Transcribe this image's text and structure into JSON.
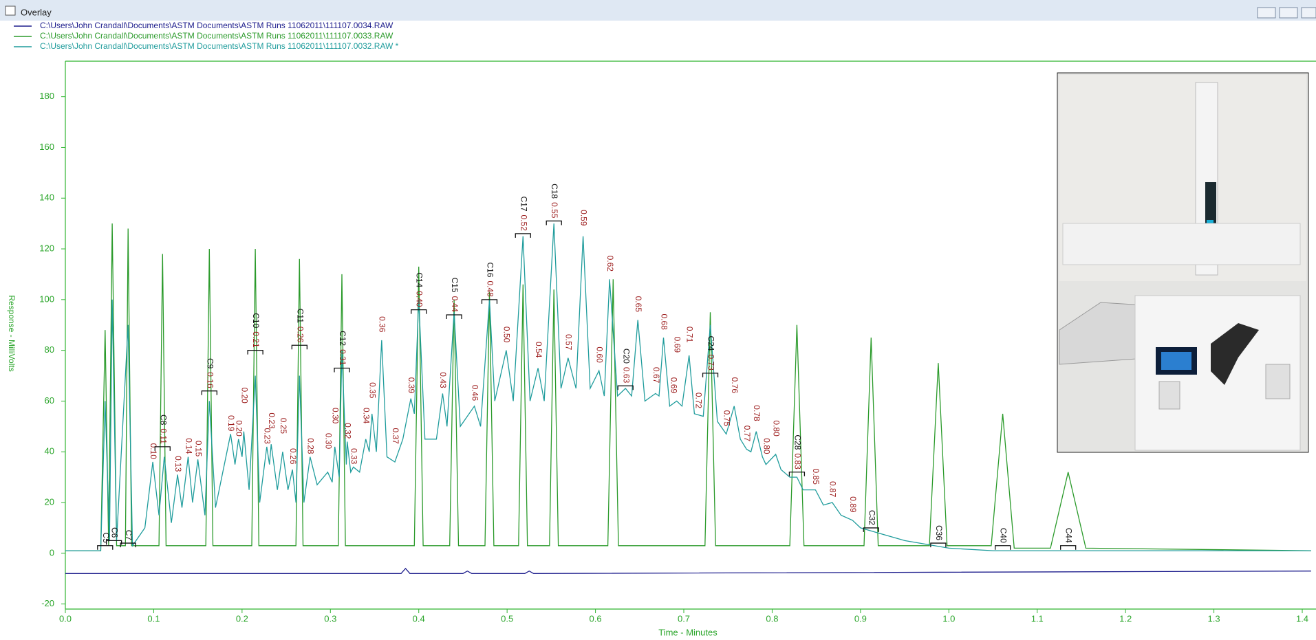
{
  "window": {
    "title": "Overlay"
  },
  "chart_data": {
    "type": "line",
    "y_label": "Response - MilliVolts",
    "x_label": "Time - Minutes",
    "xlim": [
      0,
      1.415
    ],
    "ylim": [
      -22,
      194
    ],
    "xticks": [
      {
        "value": 0,
        "label": "0.0"
      },
      {
        "value": 0.1,
        "label": "0.1"
      },
      {
        "value": 0.2,
        "label": "0.2"
      },
      {
        "value": 0.3,
        "label": "0.3"
      },
      {
        "value": 0.4,
        "label": "0.4"
      },
      {
        "value": 0.5,
        "label": "0.5"
      },
      {
        "value": 0.6,
        "label": "0.6"
      },
      {
        "value": 0.7,
        "label": "0.7"
      },
      {
        "value": 0.8,
        "label": "0.8"
      },
      {
        "value": 0.9,
        "label": "0.9"
      },
      {
        "value": 1,
        "label": "1.0"
      },
      {
        "value": 1.1,
        "label": "1.1"
      },
      {
        "value": 1.2,
        "label": "1.2"
      },
      {
        "value": 1.3,
        "label": "1.3"
      },
      {
        "value": 1.4,
        "label": "1.4"
      }
    ],
    "yticks": [
      -20,
      0,
      20,
      40,
      60,
      80,
      100,
      120,
      140,
      160,
      180
    ],
    "series": [
      {
        "name": "C:\\Users\\John Crandall\\Documents\\ASTM Documents\\ASTM Runs 11062011\\111107.0034.RAW",
        "color": "#1c1c8c",
        "x": [
          0,
          0.38,
          0.385,
          0.39,
          0.45,
          0.455,
          0.46,
          0.52,
          0.525,
          0.53,
          1.41
        ],
        "values": [
          -8,
          -8,
          -6,
          -8,
          -8,
          -7,
          -8,
          -8,
          -7,
          -8,
          -7
        ]
      },
      {
        "name": "C:\\Users\\John Crandall\\Documents\\ASTM Documents\\ASTM Runs 11062011\\111107.0033.RAW",
        "color": "#2a9a2a",
        "x": [
          0,
          0.04,
          0.045,
          0.049,
          0.053,
          0.058,
          0.068,
          0.071,
          0.075,
          0.106,
          0.11,
          0.114,
          0.159,
          0.163,
          0.167,
          0.211,
          0.215,
          0.219,
          0.261,
          0.265,
          0.269,
          0.309,
          0.313,
          0.317,
          0.395,
          0.4,
          0.405,
          0.435,
          0.44,
          0.445,
          0.475,
          0.48,
          0.485,
          0.513,
          0.518,
          0.523,
          0.548,
          0.553,
          0.558,
          0.614,
          0.62,
          0.626,
          0.724,
          0.73,
          0.736,
          0.82,
          0.828,
          0.836,
          0.904,
          0.912,
          0.92,
          0.978,
          0.988,
          0.998,
          1.048,
          1.061,
          1.074,
          1.115,
          1.135,
          1.155,
          1.41
        ],
        "values": [
          1,
          1,
          88,
          3,
          130,
          3,
          3,
          128,
          3,
          3,
          118,
          3,
          3,
          120,
          3,
          3,
          120,
          3,
          3,
          116,
          3,
          3,
          110,
          3,
          3,
          113,
          3,
          3,
          100,
          3,
          3,
          103,
          3,
          3,
          106,
          3,
          3,
          104,
          3,
          3,
          108,
          3,
          3,
          95,
          3,
          3,
          90,
          3,
          3,
          85,
          3,
          3,
          75,
          3,
          3,
          55,
          2,
          2,
          32,
          2,
          1
        ]
      },
      {
        "name": "C:\\Users\\John Crandall\\Documents\\ASTM Documents\\ASTM Runs 11062011\\111107.0032.RAW *",
        "color": "#1f9c9c",
        "x": [
          0,
          0.04,
          0.045,
          0.05,
          0.053,
          0.058,
          0.071,
          0.076,
          0.09,
          0.099,
          0.106,
          0.112,
          0.12,
          0.127,
          0.132,
          0.139,
          0.144,
          0.15,
          0.158,
          0.163,
          0.17,
          0.187,
          0.192,
          0.196,
          0.2,
          0.202,
          0.208,
          0.215,
          0.22,
          0.228,
          0.231,
          0.233,
          0.24,
          0.246,
          0.252,
          0.257,
          0.261,
          0.265,
          0.27,
          0.277,
          0.285,
          0.297,
          0.302,
          0.305,
          0.31,
          0.313,
          0.318,
          0.319,
          0.323,
          0.326,
          0.333,
          0.34,
          0.344,
          0.347,
          0.352,
          0.358,
          0.364,
          0.373,
          0.382,
          0.391,
          0.395,
          0.4,
          0.407,
          0.42,
          0.427,
          0.432,
          0.44,
          0.447,
          0.463,
          0.47,
          0.48,
          0.486,
          0.499,
          0.507,
          0.518,
          0.526,
          0.535,
          0.542,
          0.553,
          0.561,
          0.569,
          0.578,
          0.586,
          0.594,
          0.604,
          0.61,
          0.616,
          0.625,
          0.634,
          0.641,
          0.648,
          0.656,
          0.668,
          0.672,
          0.677,
          0.684,
          0.692,
          0.698,
          0.706,
          0.712,
          0.722,
          0.73,
          0.738,
          0.748,
          0.757,
          0.764,
          0.771,
          0.776,
          0.782,
          0.789,
          0.793,
          0.804,
          0.81,
          0.82,
          0.828,
          0.835,
          0.849,
          0.858,
          0.868,
          0.878,
          0.891,
          0.9,
          0.95,
          1,
          1.05,
          1.41
        ],
        "values": [
          1,
          1,
          60,
          5,
          100,
          5,
          90,
          3,
          10,
          36,
          15,
          38,
          12,
          31,
          18,
          38,
          20,
          37,
          15,
          60,
          18,
          47,
          35,
          45,
          38,
          48,
          25,
          70,
          20,
          42,
          35,
          43,
          25,
          40,
          25,
          33,
          20,
          70,
          20,
          38,
          27,
          32,
          28,
          42,
          30,
          80,
          35,
          44,
          32,
          34,
          32,
          45,
          40,
          55,
          40,
          84,
          38,
          36,
          45,
          61,
          55,
          100,
          45,
          45,
          63,
          50,
          95,
          50,
          58,
          50,
          100,
          60,
          80,
          60,
          125,
          60,
          73,
          60,
          130,
          65,
          77,
          65,
          125,
          65,
          72,
          62,
          108,
          62,
          65,
          62,
          92,
          60,
          63,
          62,
          85,
          58,
          60,
          58,
          78,
          55,
          54,
          90,
          52,
          47,
          58,
          45,
          41,
          40,
          48,
          38,
          35,
          39,
          33,
          30,
          30,
          25,
          25,
          19,
          20,
          15,
          13,
          10,
          5,
          2,
          1,
          1
        ]
      }
    ],
    "component_labels": [
      {
        "name": "C5",
        "x": 0.045,
        "y": 3
      },
      {
        "name": "C6",
        "x": 0.055,
        "y": 5
      },
      {
        "name": "C7",
        "x": 0.071,
        "y": 4
      },
      {
        "name": "C8",
        "index": "0.11",
        "x": 0.11,
        "y": 42
      },
      {
        "name": "C9",
        "index": "0.16",
        "x": 0.163,
        "y": 64
      },
      {
        "name": "C10",
        "index": "0.21",
        "x": 0.215,
        "y": 80
      },
      {
        "name": "C11",
        "index": "0.26",
        "x": 0.265,
        "y": 82
      },
      {
        "name": "C12",
        "index": "0.31",
        "x": 0.313,
        "y": 73
      },
      {
        "name": "C14",
        "index": "0.40",
        "x": 0.4,
        "y": 96
      },
      {
        "name": "C15",
        "index": "0.44",
        "x": 0.44,
        "y": 94
      },
      {
        "name": "C16",
        "index": "0.48",
        "x": 0.48,
        "y": 100
      },
      {
        "name": "C17",
        "index": "0.52",
        "x": 0.518,
        "y": 126
      },
      {
        "name": "C18",
        "index": "0.55",
        "x": 0.553,
        "y": 131
      },
      {
        "name": "C20",
        "index": "0.63",
        "x": 0.634,
        "y": 66
      },
      {
        "name": "C24",
        "index": "0.73",
        "x": 0.73,
        "y": 71
      },
      {
        "name": "C28",
        "index": "0.83",
        "x": 0.828,
        "y": 32
      },
      {
        "name": "C32",
        "x": 0.912,
        "y": 10
      },
      {
        "name": "C36",
        "x": 0.988,
        "y": 4
      },
      {
        "name": "C40",
        "x": 1.061,
        "y": 3
      },
      {
        "name": "C44",
        "x": 1.135,
        "y": 3
      }
    ],
    "peak_labels": [
      {
        "label": "0.10",
        "x": 0.099,
        "y": 36
      },
      {
        "label": "0.13",
        "x": 0.127,
        "y": 31
      },
      {
        "label": "0.14",
        "x": 0.139,
        "y": 38
      },
      {
        "label": "0.15",
        "x": 0.15,
        "y": 37
      },
      {
        "label": "0.19",
        "x": 0.187,
        "y": 47
      },
      {
        "label": "0.20",
        "x": 0.196,
        "y": 45
      },
      {
        "label": "0.20",
        "x": 0.202,
        "y": 58
      },
      {
        "label": "0.23",
        "x": 0.228,
        "y": 42
      },
      {
        "label": "0.23",
        "x": 0.233,
        "y": 48
      },
      {
        "label": "0.25",
        "x": 0.246,
        "y": 46
      },
      {
        "label": "0.26",
        "x": 0.257,
        "y": 34
      },
      {
        "label": "0.28",
        "x": 0.277,
        "y": 38
      },
      {
        "label": "0.30",
        "x": 0.297,
        "y": 40
      },
      {
        "label": "0.30",
        "x": 0.305,
        "y": 50
      },
      {
        "label": "0.32",
        "x": 0.319,
        "y": 44
      },
      {
        "label": "0.33",
        "x": 0.326,
        "y": 34
      },
      {
        "label": "0.34",
        "x": 0.34,
        "y": 50
      },
      {
        "label": "0.35",
        "x": 0.347,
        "y": 60
      },
      {
        "label": "0.36",
        "x": 0.358,
        "y": 86
      },
      {
        "label": "0.37",
        "x": 0.373,
        "y": 42
      },
      {
        "label": "0.39",
        "x": 0.391,
        "y": 62
      },
      {
        "label": "0.43",
        "x": 0.427,
        "y": 64
      },
      {
        "label": "0.46",
        "x": 0.463,
        "y": 59
      },
      {
        "label": "0.50",
        "x": 0.499,
        "y": 82
      },
      {
        "label": "0.54",
        "x": 0.535,
        "y": 76
      },
      {
        "label": "0.57",
        "x": 0.569,
        "y": 79
      },
      {
        "label": "0.59",
        "x": 0.586,
        "y": 128
      },
      {
        "label": "0.60",
        "x": 0.604,
        "y": 74
      },
      {
        "label": "0.62",
        "x": 0.616,
        "y": 110
      },
      {
        "label": "0.65",
        "x": 0.648,
        "y": 94
      },
      {
        "label": "0.67",
        "x": 0.668,
        "y": 66
      },
      {
        "label": "0.68",
        "x": 0.677,
        "y": 87
      },
      {
        "label": "0.69",
        "x": 0.688,
        "y": 62
      },
      {
        "label": "0.69",
        "x": 0.692,
        "y": 78
      },
      {
        "label": "0.71",
        "x": 0.706,
        "y": 82
      },
      {
        "label": "0.72",
        "x": 0.716,
        "y": 56
      },
      {
        "label": "0.75",
        "x": 0.748,
        "y": 49
      },
      {
        "label": "0.76",
        "x": 0.757,
        "y": 62
      },
      {
        "label": "0.77",
        "x": 0.771,
        "y": 43
      },
      {
        "label": "0.78",
        "x": 0.782,
        "y": 51
      },
      {
        "label": "0.80",
        "x": 0.793,
        "y": 38
      },
      {
        "label": "0.80",
        "x": 0.804,
        "y": 45
      },
      {
        "label": "0.85",
        "x": 0.849,
        "y": 26
      },
      {
        "label": "0.87",
        "x": 0.868,
        "y": 21
      },
      {
        "label": "0.89",
        "x": 0.891,
        "y": 15
      }
    ]
  }
}
